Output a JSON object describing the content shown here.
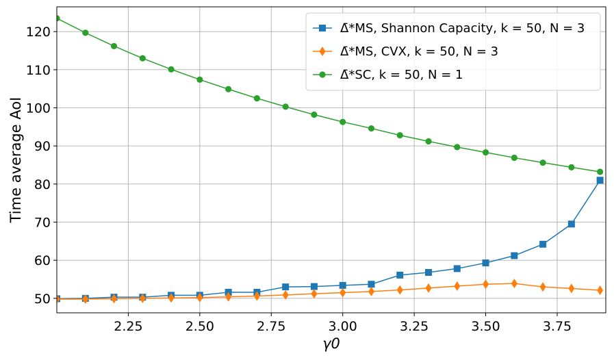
{
  "chart_data": {
    "type": "line",
    "title": "",
    "xlabel": "γ0",
    "ylabel": "Time average AoI",
    "xlim": [
      2.0,
      3.92
    ],
    "ylim": [
      46.2,
      126.5
    ],
    "xticks": [
      2.25,
      2.5,
      2.75,
      3.0,
      3.25,
      3.5,
      3.75
    ],
    "xtick_labels": [
      "2.25",
      "2.50",
      "2.75",
      "3.00",
      "3.25",
      "3.50",
      "3.75"
    ],
    "yticks": [
      50,
      60,
      70,
      80,
      90,
      100,
      110,
      120
    ],
    "ytick_labels": [
      "50",
      "60",
      "70",
      "80",
      "90",
      "100",
      "110",
      "120"
    ],
    "grid": true,
    "legend_position": "top-right",
    "x": [
      2.0,
      2.1,
      2.2,
      2.3,
      2.4,
      2.5,
      2.6,
      2.7,
      2.8,
      2.9,
      3.0,
      3.1,
      3.2,
      3.3,
      3.4,
      3.5,
      3.6,
      3.7,
      3.8,
      3.9
    ],
    "series": [
      {
        "name": "Δ̄*MS, Shannon Capacity, k = 50, N = 3",
        "legend_label": "Δ̄*MS, Shannon Capacity, k = 50, N = 3",
        "color": "#1f77b4",
        "marker": "square",
        "values": [
          49.9,
          50.0,
          50.3,
          50.3,
          50.8,
          50.8,
          51.6,
          51.6,
          53.0,
          53.1,
          53.4,
          53.7,
          56.1,
          56.8,
          57.8,
          59.3,
          61.2,
          64.2,
          69.5,
          81.0
        ]
      },
      {
        "name": "Δ̄*MS, CVX, k = 50, N = 3",
        "legend_label": "Δ̄*MS, CVX, k = 50, N = 3",
        "color": "#ff7f0e",
        "marker": "diamond",
        "values": [
          49.8,
          49.8,
          49.9,
          50.0,
          50.1,
          50.2,
          50.4,
          50.6,
          50.9,
          51.2,
          51.5,
          51.8,
          52.2,
          52.7,
          53.2,
          53.7,
          53.9,
          53.0,
          52.6,
          52.1
        ]
      },
      {
        "name": "Δ̄*SC, k = 50, N = 1",
        "legend_label": "Δ̄*SC, k = 50, N = 1",
        "color": "#2ca02c",
        "marker": "circle",
        "values": [
          123.5,
          119.7,
          116.2,
          113.0,
          110.1,
          107.4,
          104.9,
          102.5,
          100.3,
          98.2,
          96.3,
          94.6,
          92.8,
          91.2,
          89.7,
          88.3,
          86.9,
          85.6,
          84.4,
          83.2
        ]
      }
    ]
  }
}
